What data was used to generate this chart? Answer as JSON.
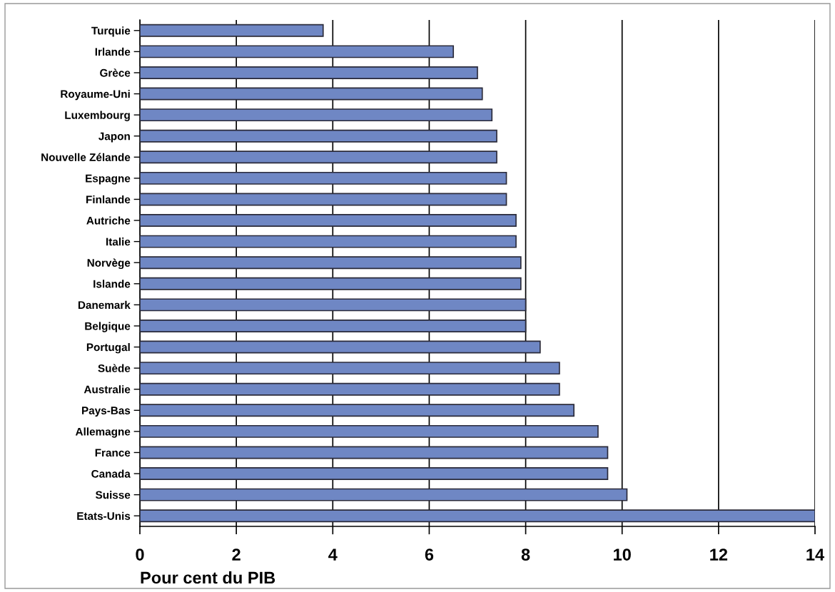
{
  "chart_data": {
    "type": "bar",
    "orientation": "horizontal",
    "xlabel": "Pour cent du PIB",
    "categories": [
      "Turquie",
      "Irlande",
      "Grèce",
      "Royaume-Uni",
      "Luxembourg",
      "Japon",
      "Nouvelle Zélande",
      "Espagne",
      "Finlande",
      "Autriche",
      "Italie",
      "Norvège",
      "Islande",
      "Danemark",
      "Belgique",
      "Portugal",
      "Suède",
      "Australie",
      "Pays-Bas",
      "Allemagne",
      "France",
      "Canada",
      "Suisse",
      "Etats-Unis"
    ],
    "values": [
      3.8,
      6.5,
      7.0,
      7.1,
      7.3,
      7.4,
      7.4,
      7.6,
      7.6,
      7.8,
      7.8,
      7.9,
      7.9,
      8.0,
      8.0,
      8.3,
      8.7,
      8.7,
      9.0,
      9.5,
      9.7,
      9.7,
      10.1,
      14
    ],
    "color": "#6f87c4",
    "xlim": [
      0,
      14
    ],
    "xticks": [
      0,
      2,
      4,
      6,
      8,
      10,
      12,
      14
    ],
    "grid": "x",
    "legend": false
  }
}
